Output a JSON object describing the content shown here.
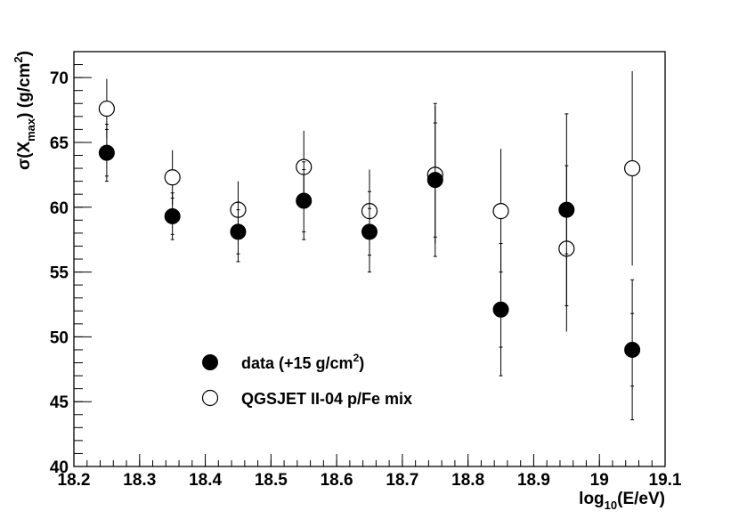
{
  "chart_data": {
    "type": "scatter",
    "title": "",
    "xlabel": {
      "prefix": "log",
      "sub": "10",
      "suffix": "(E/eV)"
    },
    "ylabel": {
      "prefix": "σ(X",
      "sub": "max",
      "mid": ") (g/cm",
      "sup": "2",
      "suffix": ")"
    },
    "xlim": [
      18.2,
      19.1
    ],
    "ylim": [
      40,
      72
    ],
    "x_major_ticks": [
      18.2,
      18.3,
      18.4,
      18.5,
      18.6,
      18.7,
      18.8,
      18.9,
      19.0,
      19.1
    ],
    "x_tick_labels": [
      "18.2",
      "18.3",
      "18.4",
      "18.5",
      "18.6",
      "18.7",
      "18.8",
      "18.9",
      "19",
      "19.1"
    ],
    "y_major_ticks": [
      40,
      45,
      50,
      55,
      60,
      65,
      70
    ],
    "y_tick_labels": [
      "40",
      "45",
      "50",
      "55",
      "60",
      "65",
      "70"
    ],
    "grid": false,
    "legend_position": "lower-left",
    "series": [
      {
        "name": {
          "prefix": "data (+15 g/cm",
          "sup": "2",
          "suffix": ")"
        },
        "marker": "filled-circle",
        "points": [
          {
            "x": 18.25,
            "y": 64.2,
            "err_outer": 2.2,
            "err_inner": 1.8
          },
          {
            "x": 18.35,
            "y": 59.3,
            "err_outer": 1.8,
            "err_inner": 1.4
          },
          {
            "x": 18.45,
            "y": 58.1,
            "err_outer": 2.3,
            "err_inner": 1.7
          },
          {
            "x": 18.55,
            "y": 60.5,
            "err_outer": 3.0,
            "err_inner": 2.4
          },
          {
            "x": 18.65,
            "y": 58.1,
            "err_outer": 3.1,
            "err_inner": 1.8
          },
          {
            "x": 18.75,
            "y": 62.1,
            "err_outer": 5.9,
            "err_inner": 4.4
          },
          {
            "x": 18.85,
            "y": 52.1,
            "err_outer": 5.1,
            "err_inner": 2.9
          },
          {
            "x": 18.95,
            "y": 59.8,
            "err_outer": 7.4,
            "err_inner": 3.4
          },
          {
            "x": 19.05,
            "y": 49.0,
            "err_outer": 5.4,
            "err_inner": 2.8
          }
        ]
      },
      {
        "name": "QGSJET II-04 p/Fe mix",
        "marker": "open-circle",
        "points": [
          {
            "x": 18.25,
            "y": 67.6,
            "err": 2.3
          },
          {
            "x": 18.35,
            "y": 62.3,
            "err": 2.1
          },
          {
            "x": 18.45,
            "y": 59.8,
            "err": 2.2
          },
          {
            "x": 18.55,
            "y": 63.1,
            "err": 2.8
          },
          {
            "x": 18.65,
            "y": 59.7,
            "err": 3.2
          },
          {
            "x": 18.75,
            "y": 62.5,
            "err": 5.3
          },
          {
            "x": 18.85,
            "y": 59.7,
            "err": 4.8
          },
          {
            "x": 18.95,
            "y": 56.8,
            "err": 6.4
          },
          {
            "x": 19.05,
            "y": 63.0,
            "err": 7.5
          }
        ]
      }
    ]
  }
}
